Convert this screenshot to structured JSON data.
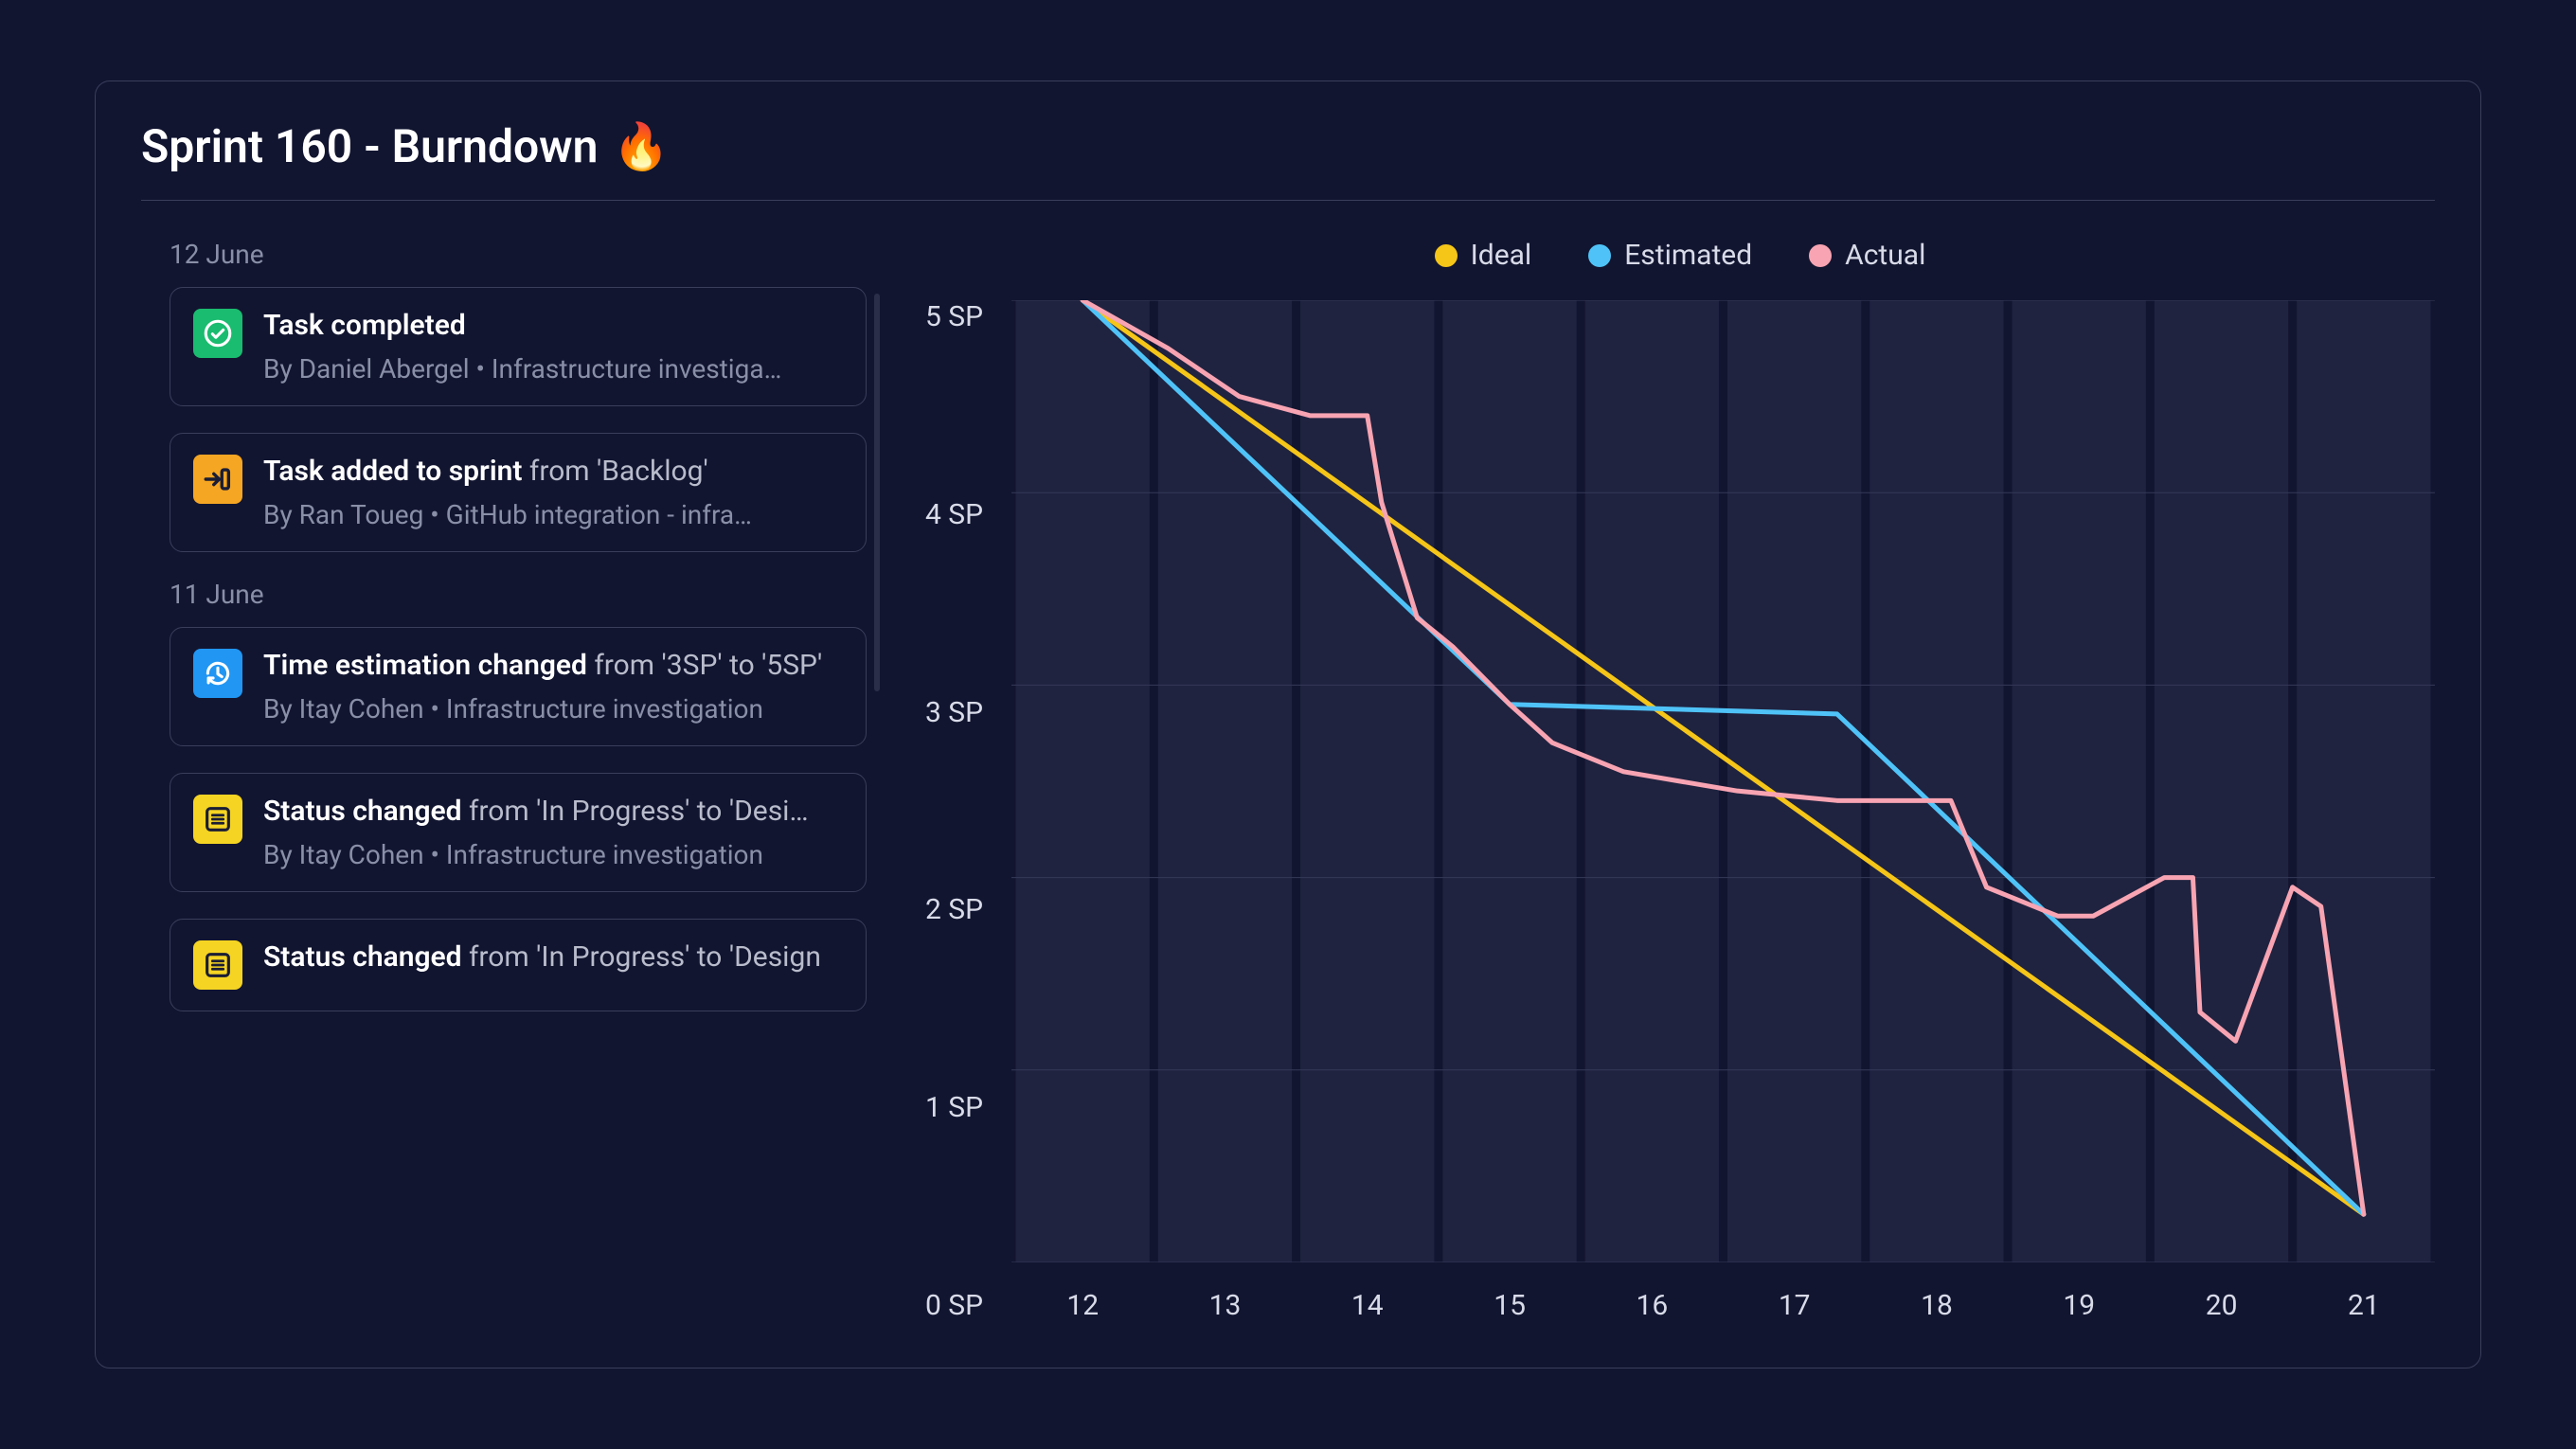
{
  "title": "Sprint 160 - Burndown",
  "title_emoji": "🔥",
  "colors": {
    "background": "#121530",
    "panel_border": "#3a3e5a",
    "text_primary": "#ffffff",
    "text_secondary": "#b8bccb",
    "text_muted": "#8a8fa8",
    "scrollbar": "#2a2e48"
  },
  "activity": {
    "groups": [
      {
        "date": "12 June",
        "items": [
          {
            "icon": "check-circle",
            "icon_bg": "#1abc6f",
            "icon_fg": "#ffffff",
            "title_bold": "Task completed",
            "title_rest": "",
            "subtitle": "By Daniel Abergel • Infrastructure investiga…"
          },
          {
            "icon": "move-in",
            "icon_bg": "#f5a623",
            "icon_fg": "#1a1d35",
            "title_bold": "Task added to sprint",
            "title_rest": " from 'Backlog'",
            "subtitle": "By Ran Toueg • GitHub integration - infra…"
          }
        ]
      },
      {
        "date": "11 June",
        "items": [
          {
            "icon": "clock-history",
            "icon_bg": "#2196f3",
            "icon_fg": "#ffffff",
            "title_bold": "Time estimation changed",
            "title_rest": " from '3SP' to '5SP'",
            "subtitle": "By Itay Cohen • Infrastructure investigation"
          },
          {
            "icon": "list-lines",
            "icon_bg": "#f5d423",
            "icon_fg": "#1a1d35",
            "title_bold": "Status changed",
            "title_rest": " from 'In Progress' to 'Desi…",
            "subtitle": "By Itay Cohen • Infrastructure investigation"
          },
          {
            "icon": "list-lines",
            "icon_bg": "#f5d423",
            "icon_fg": "#1a1d35",
            "title_bold": "Status changed",
            "title_rest": " from 'In Progress' to 'Design",
            "subtitle": ""
          }
        ]
      }
    ]
  },
  "chart": {
    "type": "line",
    "legend": [
      {
        "label": "Ideal",
        "color": "#f5c518"
      },
      {
        "label": "Estimated",
        "color": "#4fc3f7"
      },
      {
        "label": "Actual",
        "color": "#f8a4b2"
      }
    ],
    "ylabel_suffix": "SP",
    "ylim": [
      0,
      5
    ],
    "ytick_step": 1,
    "y_ticks": [
      "5 SP",
      "4 SP",
      "3 SP",
      "2 SP",
      "1 SP",
      "0 SP"
    ],
    "x_ticks": [
      "12",
      "13",
      "14",
      "15",
      "16",
      "17",
      "18",
      "19",
      "20",
      "21"
    ],
    "plot_bg": "#1f2340",
    "grid_color": "#353a58",
    "vgrid_color": "#1a1d38",
    "line_width": 5,
    "series": {
      "ideal": {
        "color": "#f5c518",
        "points": [
          [
            12,
            5
          ],
          [
            21,
            0.25
          ]
        ]
      },
      "estimated": {
        "color": "#4fc3f7",
        "points": [
          [
            12,
            5
          ],
          [
            15,
            2.9
          ],
          [
            17.3,
            2.85
          ],
          [
            21,
            0.25
          ]
        ]
      },
      "actual": {
        "color": "#f8a4b2",
        "points": [
          [
            12,
            5
          ],
          [
            12.6,
            4.75
          ],
          [
            13.1,
            4.5
          ],
          [
            13.6,
            4.4
          ],
          [
            14.0,
            4.4
          ],
          [
            14.1,
            3.95
          ],
          [
            14.35,
            3.35
          ],
          [
            14.6,
            3.2
          ],
          [
            15.0,
            2.9
          ],
          [
            15.3,
            2.7
          ],
          [
            15.8,
            2.55
          ],
          [
            16.6,
            2.45
          ],
          [
            17.3,
            2.4
          ],
          [
            18.1,
            2.4
          ],
          [
            18.35,
            1.95
          ],
          [
            18.85,
            1.8
          ],
          [
            19.1,
            1.8
          ],
          [
            19.6,
            2.0
          ],
          [
            19.8,
            2.0
          ],
          [
            19.85,
            1.3
          ],
          [
            20.1,
            1.15
          ],
          [
            20.5,
            1.95
          ],
          [
            20.7,
            1.85
          ],
          [
            21,
            0.25
          ]
        ]
      }
    }
  }
}
